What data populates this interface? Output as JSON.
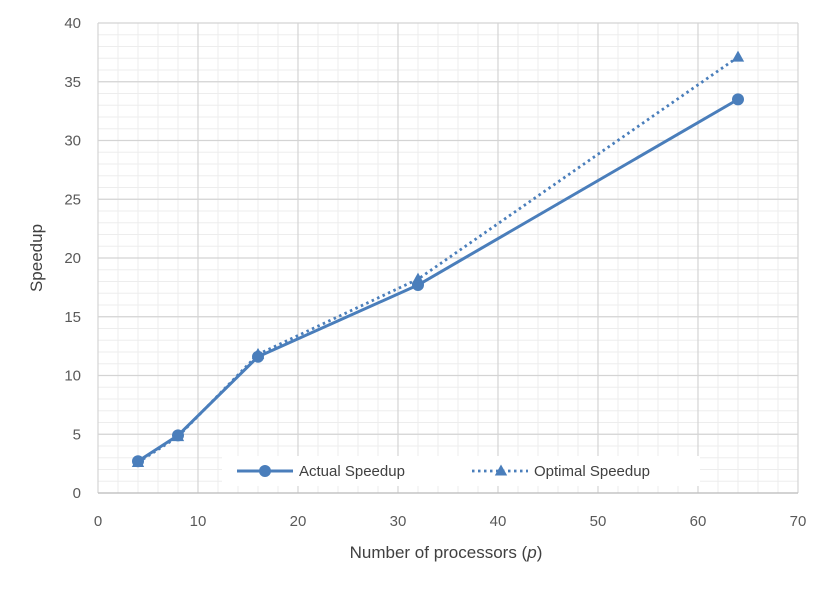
{
  "chart_data": {
    "type": "line",
    "xlabel_prefix": "Number of processors (",
    "xlabel_var": "p",
    "xlabel_suffix": ")",
    "ylabel": "Speedup",
    "xlim": [
      0,
      70
    ],
    "ylim": [
      0,
      40
    ],
    "x_ticks": [
      0,
      10,
      20,
      30,
      40,
      50,
      60,
      70
    ],
    "y_ticks": [
      0,
      5,
      10,
      15,
      20,
      25,
      30,
      35,
      40
    ],
    "grid": {
      "major": true,
      "minor": true
    },
    "legend_position": "bottom-center-inside",
    "series": [
      {
        "name": "Actual Speedup",
        "x": [
          4,
          8,
          16,
          32,
          64
        ],
        "y": [
          2.7,
          4.9,
          11.6,
          17.7,
          33.5
        ],
        "color": "#4a7ebb",
        "line_style": "solid",
        "marker": "circle"
      },
      {
        "name": "Optimal Speedup",
        "x": [
          4,
          8,
          16,
          32,
          64
        ],
        "y": [
          2.6,
          4.8,
          11.8,
          18.2,
          37.1
        ],
        "color": "#4a7ebb",
        "line_style": "dotted",
        "marker": "triangle"
      }
    ]
  }
}
